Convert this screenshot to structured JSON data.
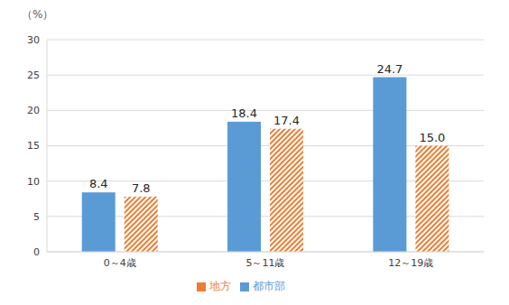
{
  "chart_data": {
    "type": "bar",
    "ylabel": "（%）",
    "categories": [
      "0～4歳",
      "5～11歳",
      "12～19歳"
    ],
    "series": [
      {
        "name": "都市部",
        "color": "#5b9bd5",
        "values": [
          8.4,
          18.4,
          24.7
        ]
      },
      {
        "name": "地方",
        "color": "#ed7d31",
        "values": [
          7.8,
          17.4,
          15.0
        ],
        "marker": "hatch"
      }
    ],
    "ylim": [
      0,
      30
    ],
    "yticks": [
      0,
      5,
      10,
      15,
      20,
      25,
      30
    ],
    "grid": true,
    "legend": "bottom",
    "data_labels": true
  }
}
